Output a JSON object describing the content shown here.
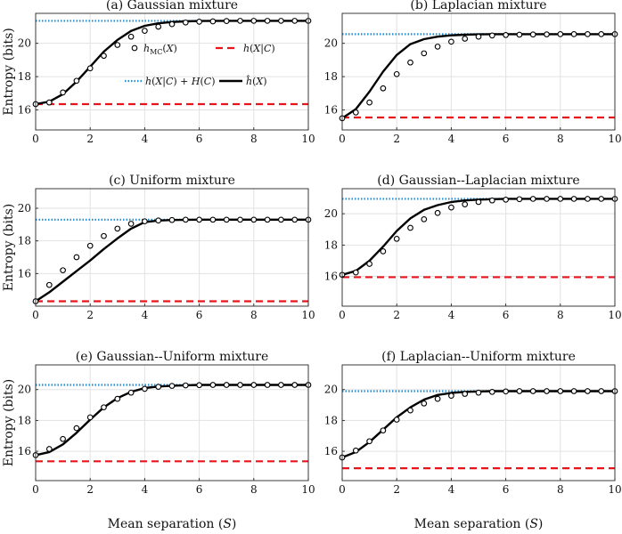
{
  "figure": {
    "ylabel": "Entropy (bits)",
    "xlabel": "Mean separation (S)",
    "legend": {
      "mc": "h_MC(X)",
      "cond": "h(X|C)",
      "upper": "h(X|C) + H(C)",
      "hat": "ĥ(X)"
    }
  },
  "colors": {
    "upper": "#1f8fd6",
    "cond": "#e8141c",
    "hat": "#000000",
    "mc": "#000000",
    "grid": "#e2e2e2"
  },
  "chart_data": [
    {
      "type": "line",
      "title": "(a) Gaussian mixture",
      "xlabel": "",
      "ylabel": "Entropy (bits)",
      "xlim": [
        0,
        10
      ],
      "ylim": [
        14.8,
        21.8
      ],
      "xticks": [
        0,
        2,
        4,
        6,
        8,
        10
      ],
      "yticks": [
        16,
        18,
        20
      ],
      "xtick_labels": [
        "0",
        "2",
        "4",
        "6",
        "8",
        "10"
      ],
      "ytick_labels": [
        "16",
        "18",
        "20"
      ],
      "upper": 21.35,
      "cond": 16.35,
      "grid": true,
      "hat": {
        "x": [
          0,
          0.5,
          1,
          1.5,
          2,
          2.5,
          3,
          3.5,
          4,
          4.5,
          5,
          5.5,
          6,
          7,
          8,
          9,
          10
        ],
        "y": [
          16.35,
          16.5,
          16.95,
          17.7,
          18.6,
          19.5,
          20.2,
          20.75,
          21.05,
          21.2,
          21.28,
          21.32,
          21.34,
          21.35,
          21.35,
          21.35,
          21.35
        ]
      },
      "mc": {
        "x": [
          0,
          0.5,
          1,
          1.5,
          2,
          2.5,
          3,
          3.5,
          4,
          4.5,
          5,
          5.5,
          6,
          6.5,
          7,
          7.5,
          8,
          8.5,
          9,
          9.5,
          10
        ],
        "y": [
          16.35,
          16.45,
          17.05,
          17.75,
          18.5,
          19.25,
          19.9,
          20.4,
          20.75,
          21.0,
          21.15,
          21.25,
          21.3,
          21.32,
          21.34,
          21.35,
          21.35,
          21.35,
          21.35,
          21.35,
          21.35
        ]
      }
    },
    {
      "type": "line",
      "title": "(b) Laplacian mixture",
      "xlabel": "",
      "ylabel": "",
      "xlim": [
        0,
        10
      ],
      "ylim": [
        14.8,
        21.8
      ],
      "xticks": [
        0,
        2,
        4,
        6,
        8,
        10
      ],
      "yticks": [
        16,
        18,
        20
      ],
      "xtick_labels": [
        "0",
        "2",
        "4",
        "6",
        "8",
        "10"
      ],
      "ytick_labels": [
        "16",
        "18",
        "20"
      ],
      "upper": 20.55,
      "cond": 15.55,
      "grid": true,
      "hat": {
        "x": [
          0,
          0.5,
          1,
          1.5,
          2,
          2.5,
          3,
          3.5,
          4,
          4.5,
          5,
          5.5,
          6,
          7,
          8,
          9,
          10
        ],
        "y": [
          15.5,
          16.05,
          17.1,
          18.3,
          19.3,
          19.95,
          20.25,
          20.4,
          20.48,
          20.52,
          20.54,
          20.55,
          20.55,
          20.55,
          20.55,
          20.55,
          20.55
        ]
      },
      "mc": {
        "x": [
          0,
          0.5,
          1,
          1.5,
          2,
          2.5,
          3,
          3.5,
          4,
          4.5,
          5,
          5.5,
          6,
          6.5,
          7,
          7.5,
          8,
          8.5,
          9,
          9.5,
          10
        ],
        "y": [
          15.5,
          15.85,
          16.45,
          17.3,
          18.15,
          18.85,
          19.4,
          19.8,
          20.1,
          20.28,
          20.4,
          20.47,
          20.5,
          20.52,
          20.53,
          20.54,
          20.55,
          20.55,
          20.55,
          20.55,
          20.55
        ]
      }
    },
    {
      "type": "line",
      "title": "(c) Uniform mixture",
      "xlabel": "",
      "ylabel": "Entropy (bits)",
      "xlim": [
        0,
        10
      ],
      "ylim": [
        14.0,
        21.2
      ],
      "xticks": [
        0,
        2,
        4,
        6,
        8,
        10
      ],
      "yticks": [
        16,
        18,
        20
      ],
      "xtick_labels": [
        "0",
        "2",
        "4",
        "6",
        "8",
        "10"
      ],
      "ytick_labels": [
        "16",
        "18",
        "20"
      ],
      "upper": 19.3,
      "cond": 14.3,
      "grid": true,
      "hat": {
        "x": [
          0,
          0.5,
          1,
          1.5,
          2,
          2.5,
          3,
          3.5,
          4,
          4.5,
          5,
          6,
          7,
          8,
          9,
          10
        ],
        "y": [
          14.3,
          14.85,
          15.5,
          16.15,
          16.8,
          17.5,
          18.15,
          18.75,
          19.15,
          19.25,
          19.28,
          19.3,
          19.3,
          19.3,
          19.3,
          19.3
        ]
      },
      "mc": {
        "x": [
          0,
          0.5,
          1,
          1.5,
          2,
          2.5,
          3,
          3.5,
          4,
          4.5,
          5,
          5.5,
          6,
          6.5,
          7,
          7.5,
          8,
          8.5,
          9,
          9.5,
          10
        ],
        "y": [
          14.3,
          15.3,
          16.2,
          17.0,
          17.7,
          18.3,
          18.75,
          19.05,
          19.2,
          19.25,
          19.28,
          19.3,
          19.3,
          19.3,
          19.3,
          19.3,
          19.3,
          19.3,
          19.3,
          19.3,
          19.3
        ]
      }
    },
    {
      "type": "line",
      "title": "(d) Gaussian--Laplacian mixture",
      "xlabel": "",
      "ylabel": "",
      "xlim": [
        0,
        10
      ],
      "ylim": [
        14.1,
        21.6
      ],
      "xticks": [
        0,
        2,
        4,
        6,
        8,
        10
      ],
      "yticks": [
        16,
        18,
        20
      ],
      "xtick_labels": [
        "0",
        "2",
        "4",
        "6",
        "8",
        "10"
      ],
      "ytick_labels": [
        "16",
        "18",
        "20"
      ],
      "upper": 20.95,
      "cond": 15.95,
      "grid": true,
      "hat": {
        "x": [
          0,
          0.5,
          1,
          1.5,
          2,
          2.5,
          3,
          3.5,
          4,
          4.5,
          5,
          5.5,
          6,
          7,
          8,
          9,
          10
        ],
        "y": [
          16.1,
          16.35,
          17.0,
          17.9,
          18.9,
          19.7,
          20.25,
          20.55,
          20.75,
          20.85,
          20.9,
          20.93,
          20.95,
          20.95,
          20.95,
          20.95,
          20.95
        ]
      },
      "mc": {
        "x": [
          0,
          0.5,
          1,
          1.5,
          2,
          2.5,
          3,
          3.5,
          4,
          4.5,
          5,
          5.5,
          6,
          6.5,
          7,
          7.5,
          8,
          8.5,
          9,
          9.5,
          10
        ],
        "y": [
          16.1,
          16.25,
          16.8,
          17.6,
          18.4,
          19.1,
          19.65,
          20.05,
          20.4,
          20.6,
          20.75,
          20.85,
          20.9,
          20.93,
          20.95,
          20.95,
          20.95,
          20.95,
          20.95,
          20.95,
          20.95
        ]
      }
    },
    {
      "type": "line",
      "title": "(e) Gaussian--Uniform mixture",
      "xlabel": "Mean separation (S)",
      "ylabel": "Entropy (bits)",
      "xlim": [
        0,
        10
      ],
      "ylim": [
        14.1,
        21.6
      ],
      "xticks": [
        0,
        2,
        4,
        6,
        8,
        10
      ],
      "yticks": [
        16,
        18,
        20
      ],
      "xtick_labels": [
        "0",
        "2",
        "4",
        "6",
        "8",
        "10"
      ],
      "ytick_labels": [
        "16",
        "18",
        "20"
      ],
      "upper": 20.3,
      "cond": 15.35,
      "grid": true,
      "hat": {
        "x": [
          0,
          0.5,
          1,
          1.5,
          2,
          2.5,
          3,
          3.5,
          4,
          4.5,
          5,
          5.5,
          6,
          7,
          8,
          9,
          10
        ],
        "y": [
          15.75,
          15.95,
          16.45,
          17.2,
          18.05,
          18.85,
          19.45,
          19.85,
          20.1,
          20.2,
          20.25,
          20.28,
          20.3,
          20.3,
          20.3,
          20.3,
          20.3
        ]
      },
      "mc": {
        "x": [
          0,
          0.5,
          1,
          1.5,
          2,
          2.5,
          3,
          3.5,
          4,
          4.5,
          5,
          5.5,
          6,
          6.5,
          7,
          7.5,
          8,
          8.5,
          9,
          9.5,
          10
        ],
        "y": [
          15.75,
          16.15,
          16.8,
          17.5,
          18.2,
          18.85,
          19.4,
          19.8,
          20.05,
          20.18,
          20.24,
          20.27,
          20.29,
          20.3,
          20.3,
          20.3,
          20.3,
          20.3,
          20.3,
          20.3,
          20.3
        ]
      }
    },
    {
      "type": "line",
      "title": "(f) Laplacian--Uniform mixture",
      "xlabel": "Mean separation (S)",
      "ylabel": "",
      "xlim": [
        0,
        10
      ],
      "ylim": [
        14.1,
        21.6
      ],
      "xticks": [
        0,
        2,
        4,
        6,
        8,
        10
      ],
      "yticks": [
        16,
        18,
        20
      ],
      "xtick_labels": [
        "0",
        "2",
        "4",
        "6",
        "8",
        "10"
      ],
      "ytick_labels": [
        "16",
        "18",
        "20"
      ],
      "upper": 19.9,
      "cond": 14.9,
      "grid": true,
      "hat": {
        "x": [
          0,
          0.5,
          1,
          1.5,
          2,
          2.5,
          3,
          3.5,
          4,
          4.5,
          5,
          5.5,
          6,
          7,
          8,
          9,
          10
        ],
        "y": [
          15.6,
          15.95,
          16.6,
          17.4,
          18.2,
          18.85,
          19.35,
          19.65,
          19.78,
          19.85,
          19.88,
          19.9,
          19.9,
          19.9,
          19.9,
          19.9,
          19.9
        ]
      },
      "mc": {
        "x": [
          0,
          0.5,
          1,
          1.5,
          2,
          2.5,
          3,
          3.5,
          4,
          4.5,
          5,
          5.5,
          6,
          6.5,
          7,
          7.5,
          8,
          8.5,
          9,
          9.5,
          10
        ],
        "y": [
          15.6,
          16.05,
          16.65,
          17.35,
          18.05,
          18.65,
          19.1,
          19.4,
          19.6,
          19.72,
          19.8,
          19.85,
          19.88,
          19.9,
          19.9,
          19.9,
          19.9,
          19.9,
          19.9,
          19.9,
          19.9
        ]
      }
    }
  ]
}
